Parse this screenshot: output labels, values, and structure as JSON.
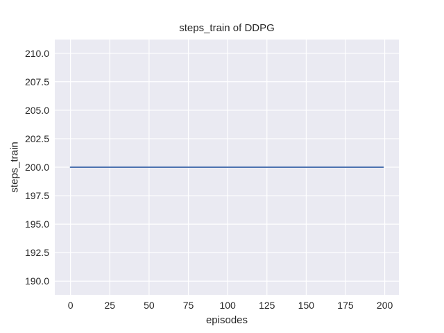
{
  "chart_data": {
    "type": "line",
    "title": "steps_train of DDPG",
    "xlabel": "episodes",
    "ylabel": "steps_train",
    "xlim": [
      -10,
      209
    ],
    "ylim": [
      188.8,
      211.2
    ],
    "xticks": [
      0,
      25,
      50,
      75,
      100,
      125,
      150,
      175,
      200
    ],
    "xtick_labels": [
      "0",
      "25",
      "50",
      "75",
      "100",
      "125",
      "150",
      "175",
      "200"
    ],
    "yticks": [
      190.0,
      192.5,
      195.0,
      197.5,
      200.0,
      202.5,
      205.0,
      207.5,
      210.0
    ],
    "ytick_labels": [
      "190.0",
      "192.5",
      "195.0",
      "197.5",
      "200.0",
      "202.5",
      "205.0",
      "207.5",
      "210.0"
    ],
    "grid": true,
    "legend_position": "none",
    "style": {
      "figure_background": "#ffffff",
      "plot_background": "#eaeaf2",
      "grid_color": "#ffffff",
      "grid_width": 1.2,
      "text_color": "#262626",
      "line_width": 2.1
    },
    "series": [
      {
        "name": "steps_train",
        "color": "#4c72b0",
        "x": [
          0,
          199
        ],
        "y": [
          200,
          200
        ]
      }
    ]
  }
}
